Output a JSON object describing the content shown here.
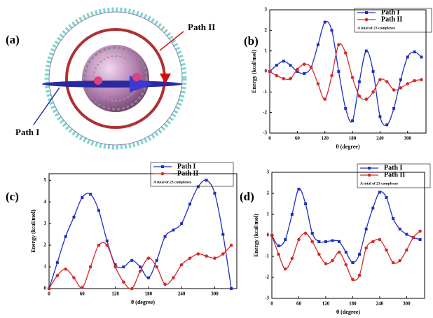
{
  "panel_a": {
    "label": "(a)",
    "path_ii_label": "Path II",
    "path_i_label": "Path I"
  },
  "chart_data": [
    {
      "type": "line",
      "panel_label": "(b)",
      "xlabel": "θ (degree)",
      "ylabel": "Energy (kcal/mol)",
      "annotation": "A total of 23 complexes",
      "x": [
        0,
        15,
        30,
        45,
        60,
        75,
        90,
        105,
        120,
        135,
        150,
        165,
        180,
        195,
        210,
        225,
        240,
        255,
        270,
        285,
        300,
        315,
        330
      ],
      "xlim": [
        0,
        340
      ],
      "xticks": [
        0,
        60,
        120,
        180,
        240,
        300
      ],
      "ylim": [
        -3,
        3
      ],
      "yticks": [
        -3,
        -2,
        -1,
        0,
        1,
        2,
        3
      ],
      "series": [
        {
          "name": "Path I",
          "color": "#1f2fbf",
          "marker": "square",
          "values": [
            0,
            0.3,
            0.5,
            0.3,
            0,
            -0.1,
            0.2,
            1.3,
            2.4,
            2.0,
            0,
            -1.8,
            -2.4,
            -0.5,
            1.0,
            0,
            -2.2,
            -2.6,
            -1.8,
            -0.4,
            0.7,
            0.95,
            0.7
          ]
        },
        {
          "name": "Path II",
          "color": "#d42a2a",
          "marker": "circle",
          "values": [
            0,
            -0.2,
            -0.35,
            -0.35,
            0.1,
            0.35,
            0.2,
            -0.6,
            -1.35,
            -0.2,
            1.3,
            0.9,
            -0.3,
            -1.2,
            -1.35,
            -1.0,
            -0.4,
            -0.5,
            -0.9,
            -0.8,
            -0.6,
            -0.45,
            -0.4
          ]
        }
      ]
    },
    {
      "type": "line",
      "panel_label": "(c)",
      "xlabel": "θ (degree)",
      "ylabel": "Energy (kcal/mol)",
      "annotation": "A total of 23 complexes",
      "x": [
        0,
        15,
        30,
        45,
        60,
        75,
        90,
        105,
        120,
        135,
        150,
        165,
        180,
        195,
        210,
        225,
        240,
        255,
        270,
        285,
        300,
        315,
        330
      ],
      "xlim": [
        0,
        340
      ],
      "xticks": [
        0,
        60,
        120,
        180,
        240,
        300
      ],
      "ylim": [
        0,
        5.3
      ],
      "yticks": [
        0,
        1,
        2,
        3,
        4,
        5
      ],
      "series": [
        {
          "name": "Path I",
          "color": "#1f2fbf",
          "marker": "square",
          "values": [
            0,
            1.2,
            2.4,
            3.3,
            4.2,
            4.35,
            3.6,
            2.2,
            1.1,
            1.0,
            1.3,
            1.0,
            0.5,
            1.3,
            2.4,
            2.7,
            3.0,
            3.9,
            4.7,
            5.0,
            4.4,
            2.5,
            0
          ]
        },
        {
          "name": "Path II",
          "color": "#d42a2a",
          "marker": "circle",
          "values": [
            0,
            0.6,
            0.9,
            0.5,
            0.05,
            1.0,
            2.0,
            2.0,
            1.0,
            0.3,
            0,
            0.8,
            1.4,
            1.0,
            0.2,
            0.5,
            1.1,
            1.4,
            1.6,
            1.5,
            1.4,
            1.6,
            2.0
          ]
        }
      ]
    },
    {
      "type": "line",
      "panel_label": "(d)",
      "xlabel": "θ (degree)",
      "ylabel": "Energy (kcal/mol)",
      "annotation": "A total of 23 complexes",
      "x": [
        0,
        15,
        30,
        45,
        60,
        75,
        90,
        105,
        120,
        135,
        150,
        165,
        180,
        195,
        210,
        225,
        240,
        255,
        270,
        285,
        300,
        315,
        330
      ],
      "xlim": [
        0,
        340
      ],
      "xticks": [
        0,
        60,
        120,
        180,
        240,
        300
      ],
      "ylim": [
        -3,
        3
      ],
      "yticks": [
        -3,
        -2,
        -1,
        0,
        1,
        2,
        3
      ],
      "series": [
        {
          "name": "Path I",
          "color": "#1f2fbf",
          "marker": "square",
          "values": [
            0,
            -0.5,
            -0.2,
            1.0,
            2.2,
            1.5,
            0.1,
            -0.3,
            -0.3,
            -0.25,
            -0.3,
            -0.8,
            -1.3,
            -0.9,
            0.3,
            1.3,
            2.05,
            1.8,
            0.8,
            0.3,
            0.05,
            -0.1,
            -0.2
          ]
        },
        {
          "name": "Path II",
          "color": "#d42a2a",
          "marker": "circle",
          "values": [
            0,
            -0.9,
            -1.6,
            -1.1,
            -0.2,
            0.1,
            -0.3,
            -0.9,
            -1.35,
            -1.2,
            -0.8,
            -1.4,
            -2.1,
            -1.9,
            -0.6,
            -0.3,
            -0.2,
            -0.7,
            -1.3,
            -1.2,
            -0.7,
            -0.1,
            0.2
          ]
        }
      ]
    }
  ]
}
